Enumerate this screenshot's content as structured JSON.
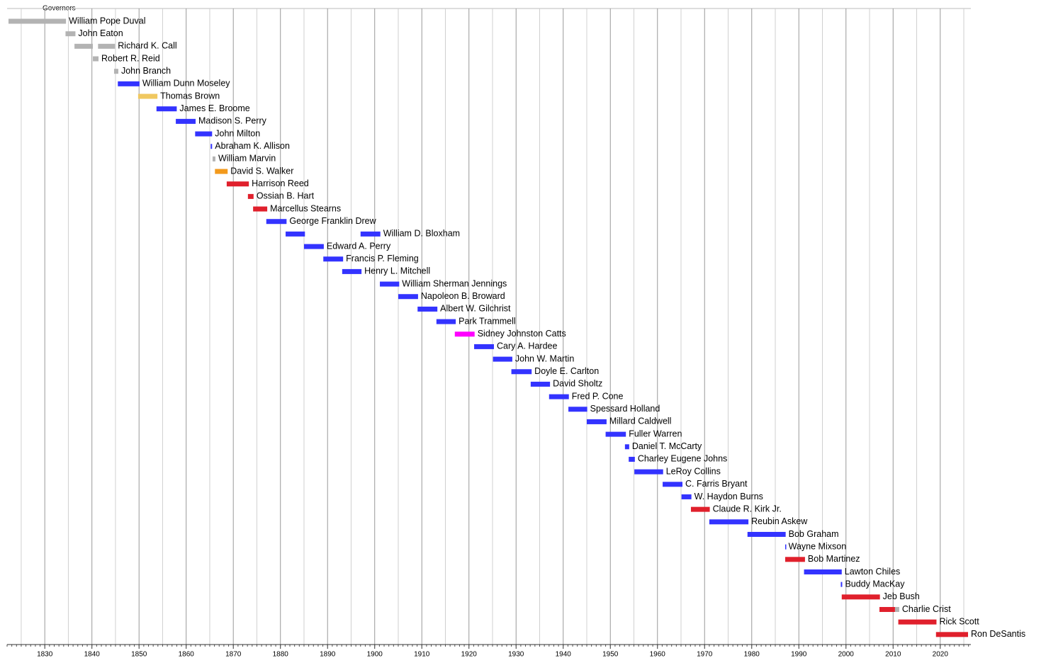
{
  "chart_data": {
    "type": "timeline",
    "title": "Governors",
    "xlim": [
      1822,
      2026.5
    ],
    "xticks": [
      1830,
      1840,
      1850,
      1860,
      1870,
      1880,
      1890,
      1900,
      1910,
      1920,
      1930,
      1940,
      1950,
      1960,
      1970,
      1980,
      1990,
      2000,
      2010,
      2020
    ],
    "minor_grid": [
      1825,
      1835,
      1845,
      1855,
      1865,
      1875,
      1885,
      1895,
      1905,
      1915,
      1925,
      1935,
      1945,
      1955,
      1965,
      1975,
      1985,
      1995,
      2005,
      2015,
      2025
    ],
    "minor_tick_interval": 1,
    "grid": true,
    "rows": [
      {
        "name": "William Pope Duval",
        "terms": [
          {
            "start": 1822.3,
            "end": 1834.5,
            "color": "#b3b3b3"
          }
        ]
      },
      {
        "name": "John Eaton",
        "terms": [
          {
            "start": 1834.4,
            "end": 1836.5,
            "color": "#b3b3b3"
          }
        ]
      },
      {
        "name": "Richard K. Call",
        "terms": [
          {
            "start": 1836.3,
            "end": 1840.2,
            "color": "#b3b3b3"
          },
          {
            "start": 1841.3,
            "end": 1844.9,
            "color": "#b3b3b3"
          }
        ]
      },
      {
        "name": "Robert R. Reid",
        "terms": [
          {
            "start": 1840.2,
            "end": 1841.4,
            "color": "#b3b3b3"
          }
        ]
      },
      {
        "name": "John Branch",
        "terms": [
          {
            "start": 1844.7,
            "end": 1845.6,
            "color": "#b3b3b3"
          }
        ]
      },
      {
        "name": "William Dunn Moseley",
        "terms": [
          {
            "start": 1845.5,
            "end": 1850.1,
            "color": "#3333ff"
          }
        ]
      },
      {
        "name": "Thomas Brown",
        "terms": [
          {
            "start": 1849.8,
            "end": 1853.9,
            "color": "#f0c860"
          }
        ]
      },
      {
        "name": "James E. Broome",
        "terms": [
          {
            "start": 1853.7,
            "end": 1858.0,
            "color": "#3333ff"
          }
        ]
      },
      {
        "name": "Madison S. Perry",
        "terms": [
          {
            "start": 1857.8,
            "end": 1862.0,
            "color": "#3333ff"
          }
        ]
      },
      {
        "name": "John Milton",
        "terms": [
          {
            "start": 1861.9,
            "end": 1865.5,
            "color": "#3333ff"
          }
        ]
      },
      {
        "name": "Abraham K. Allison",
        "terms": [
          {
            "start": 1865.2,
            "end": 1865.5,
            "color": "#3333ff"
          }
        ]
      },
      {
        "name": "William Marvin",
        "terms": [
          {
            "start": 1865.6,
            "end": 1866.2,
            "color": "#b3b3b3"
          }
        ]
      },
      {
        "name": "David S. Walker",
        "terms": [
          {
            "start": 1866.1,
            "end": 1868.8,
            "color": "#f39a1c"
          }
        ]
      },
      {
        "name": "Harrison Reed",
        "terms": [
          {
            "start": 1868.6,
            "end": 1873.3,
            "color": "#e0202c"
          }
        ]
      },
      {
        "name": "Ossian B. Hart",
        "terms": [
          {
            "start": 1873.1,
            "end": 1874.3,
            "color": "#e0202c"
          }
        ]
      },
      {
        "name": "Marcellus Stearns",
        "terms": [
          {
            "start": 1874.2,
            "end": 1877.2,
            "color": "#e0202c"
          }
        ]
      },
      {
        "name": "George Franklin Drew",
        "terms": [
          {
            "start": 1877.0,
            "end": 1881.3,
            "color": "#3333ff"
          }
        ]
      },
      {
        "name": "William D. Bloxham",
        "terms": [
          {
            "start": 1881.1,
            "end": 1885.2,
            "color": "#3333ff"
          },
          {
            "start": 1897.0,
            "end": 1901.2,
            "color": "#3333ff"
          }
        ]
      },
      {
        "name": "Edward A. Perry",
        "terms": [
          {
            "start": 1885.0,
            "end": 1889.2,
            "color": "#3333ff"
          }
        ]
      },
      {
        "name": "Francis P. Fleming",
        "terms": [
          {
            "start": 1889.1,
            "end": 1893.3,
            "color": "#3333ff"
          }
        ]
      },
      {
        "name": "Henry L. Mitchell",
        "terms": [
          {
            "start": 1893.1,
            "end": 1897.2,
            "color": "#3333ff"
          }
        ]
      },
      {
        "name": "William Sherman Jennings",
        "terms": [
          {
            "start": 1901.1,
            "end": 1905.2,
            "color": "#3333ff"
          }
        ]
      },
      {
        "name": "Napoleon B. Broward",
        "terms": [
          {
            "start": 1905.0,
            "end": 1909.2,
            "color": "#3333ff"
          }
        ]
      },
      {
        "name": "Albert W. Gilchrist",
        "terms": [
          {
            "start": 1909.1,
            "end": 1913.3,
            "color": "#3333ff"
          }
        ]
      },
      {
        "name": "Park Trammell",
        "terms": [
          {
            "start": 1913.1,
            "end": 1917.2,
            "color": "#3333ff"
          }
        ]
      },
      {
        "name": "Sidney Johnston Catts",
        "terms": [
          {
            "start": 1917.0,
            "end": 1921.2,
            "color": "#ff00ff"
          }
        ]
      },
      {
        "name": "Cary A. Hardee",
        "terms": [
          {
            "start": 1921.1,
            "end": 1925.3,
            "color": "#3333ff"
          }
        ]
      },
      {
        "name": "John W. Martin",
        "terms": [
          {
            "start": 1925.1,
            "end": 1929.2,
            "color": "#3333ff"
          }
        ]
      },
      {
        "name": "Doyle E. Carlton",
        "terms": [
          {
            "start": 1929.0,
            "end": 1933.3,
            "color": "#3333ff"
          }
        ]
      },
      {
        "name": "David Sholtz",
        "terms": [
          {
            "start": 1933.1,
            "end": 1937.2,
            "color": "#3333ff"
          }
        ]
      },
      {
        "name": "Fred P. Cone",
        "terms": [
          {
            "start": 1937.0,
            "end": 1941.2,
            "color": "#3333ff"
          }
        ]
      },
      {
        "name": "Spessard Holland",
        "terms": [
          {
            "start": 1941.1,
            "end": 1945.1,
            "color": "#3333ff"
          }
        ]
      },
      {
        "name": "Millard Caldwell",
        "terms": [
          {
            "start": 1945.0,
            "end": 1949.2,
            "color": "#3333ff"
          }
        ]
      },
      {
        "name": "Fuller Warren",
        "terms": [
          {
            "start": 1949.0,
            "end": 1953.3,
            "color": "#3333ff"
          }
        ]
      },
      {
        "name": "Daniel T. McCarty",
        "terms": [
          {
            "start": 1953.1,
            "end": 1954.0,
            "color": "#3333ff"
          }
        ]
      },
      {
        "name": "Charley Eugene Johns",
        "terms": [
          {
            "start": 1953.9,
            "end": 1955.2,
            "color": "#3333ff"
          }
        ]
      },
      {
        "name": "LeRoy Collins",
        "terms": [
          {
            "start": 1955.1,
            "end": 1961.2,
            "color": "#3333ff"
          }
        ]
      },
      {
        "name": "C. Farris Bryant",
        "terms": [
          {
            "start": 1961.1,
            "end": 1965.3,
            "color": "#3333ff"
          }
        ]
      },
      {
        "name": "W. Haydon Burns",
        "terms": [
          {
            "start": 1965.1,
            "end": 1967.2,
            "color": "#3333ff"
          }
        ]
      },
      {
        "name": "Claude R. Kirk Jr.",
        "terms": [
          {
            "start": 1967.1,
            "end": 1971.1,
            "color": "#e0202c"
          }
        ]
      },
      {
        "name": "Reubin Askew",
        "terms": [
          {
            "start": 1971.0,
            "end": 1979.3,
            "color": "#3333ff"
          }
        ]
      },
      {
        "name": "Bob Graham",
        "terms": [
          {
            "start": 1979.1,
            "end": 1987.2,
            "color": "#3333ff"
          }
        ]
      },
      {
        "name": "Wayne Mixson",
        "terms": [
          {
            "start": 1987.1,
            "end": 1987.2,
            "color": "#3333ff"
          }
        ]
      },
      {
        "name": "Bob Martinez",
        "terms": [
          {
            "start": 1987.1,
            "end": 1991.3,
            "color": "#e0202c"
          }
        ]
      },
      {
        "name": "Lawton Chiles",
        "terms": [
          {
            "start": 1991.1,
            "end": 1999.1,
            "color": "#3333ff"
          }
        ]
      },
      {
        "name": "Buddy MacKay",
        "terms": [
          {
            "start": 1998.9,
            "end": 1999.2,
            "color": "#3333ff"
          }
        ]
      },
      {
        "name": "Jeb Bush",
        "terms": [
          {
            "start": 1999.1,
            "end": 2007.2,
            "color": "#e0202c"
          }
        ]
      },
      {
        "name": "Charlie Crist",
        "terms": [
          {
            "start": 2007.1,
            "end": 2010.4,
            "color": "#e0202c"
          },
          {
            "start": 2010.4,
            "end": 2011.3,
            "color": "#b3b3b3"
          }
        ]
      },
      {
        "name": "Rick Scott",
        "terms": [
          {
            "start": 2011.1,
            "end": 2019.2,
            "color": "#e0202c"
          }
        ]
      },
      {
        "name": "Ron DeSantis",
        "terms": [
          {
            "start": 2019.1,
            "end": 2025.9,
            "color": "#e0202c"
          }
        ]
      }
    ]
  }
}
